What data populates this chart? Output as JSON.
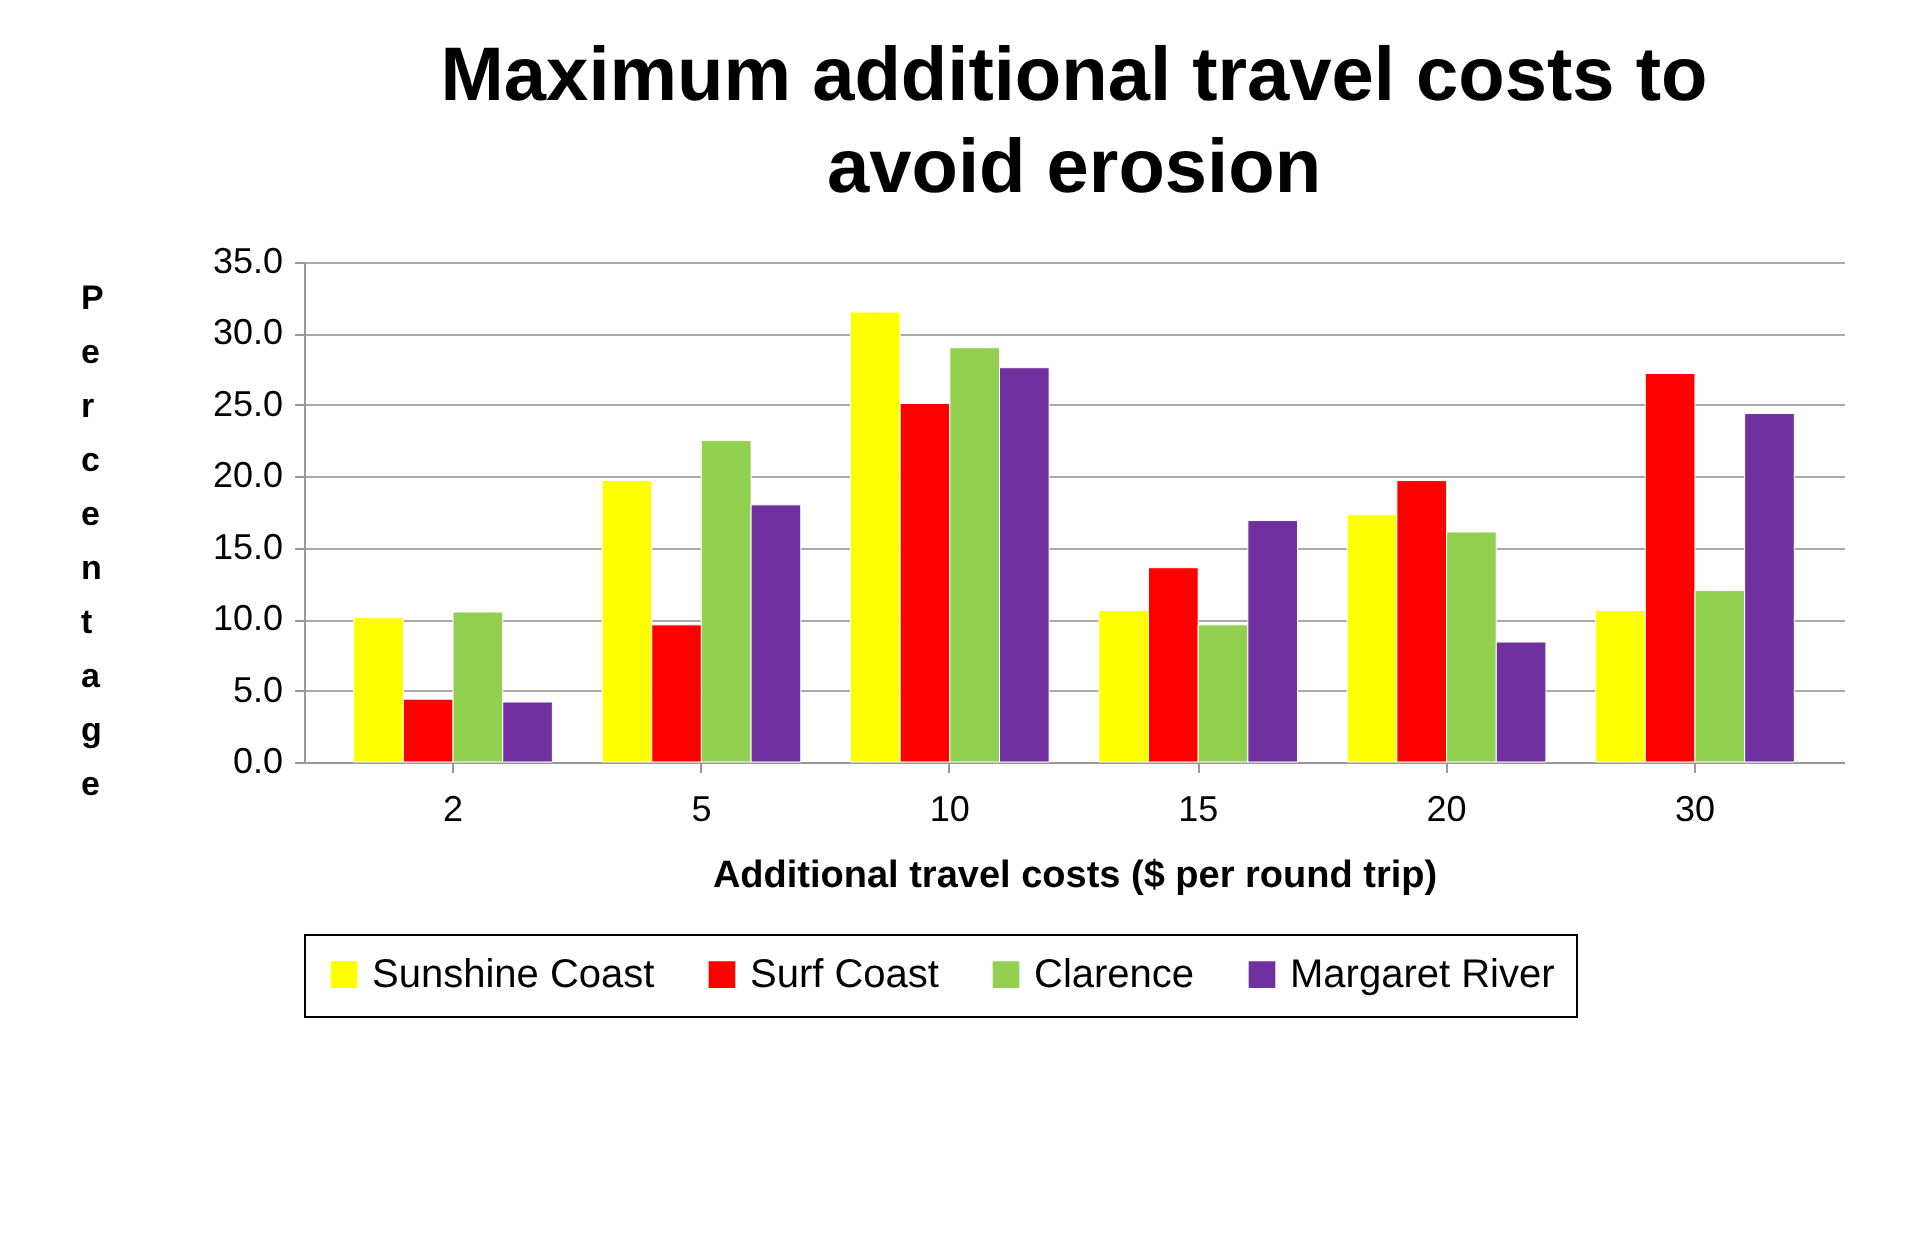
{
  "chart_data": {
    "type": "bar",
    "title": "Maximum additional travel costs to avoid erosion",
    "xlabel": "Additional travel costs ($ per round trip)",
    "ylabel": "Percentage",
    "categories": [
      "2",
      "5",
      "10",
      "15",
      "20",
      "30"
    ],
    "series": [
      {
        "name": "Sunshine Coast",
        "color": "#ffff00",
        "values": [
          10.1,
          19.7,
          31.5,
          10.6,
          17.3,
          10.6
        ]
      },
      {
        "name": "Surf Coast",
        "color": "#ff0000",
        "values": [
          4.4,
          9.6,
          25.1,
          13.6,
          19.7,
          27.2
        ]
      },
      {
        "name": "Clarence",
        "color": "#92d050",
        "values": [
          10.5,
          22.5,
          29.0,
          9.6,
          16.1,
          12.0
        ]
      },
      {
        "name": "Margaret River",
        "color": "#7030a0",
        "values": [
          4.2,
          18.0,
          27.6,
          16.9,
          8.4,
          24.4
        ]
      }
    ],
    "ylim": [
      0,
      35
    ],
    "yticks": [
      {
        "value": 0,
        "label": "0.0"
      },
      {
        "value": 5,
        "label": "5.0"
      },
      {
        "value": 10,
        "label": "10.0"
      },
      {
        "value": 15,
        "label": "15.0"
      },
      {
        "value": 20,
        "label": "20.0"
      },
      {
        "value": 25,
        "label": "25.0"
      },
      {
        "value": 30,
        "label": "30.0"
      },
      {
        "value": 35,
        "label": "35.0"
      }
    ],
    "grid": "y",
    "legend": "bottom"
  }
}
